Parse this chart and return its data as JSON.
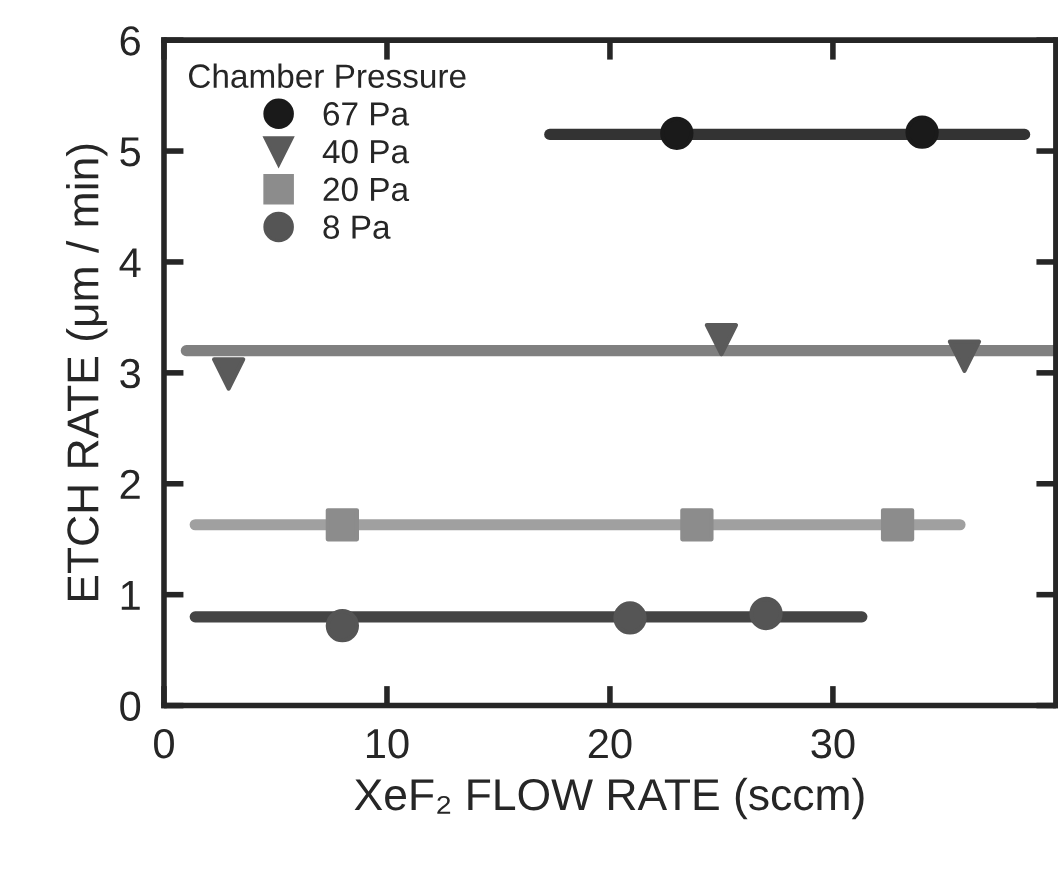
{
  "chart_data": {
    "type": "scatter",
    "xlabel": "XeF₂ FLOW RATE (sccm)",
    "ylabel": "ETCH RATE (μm / min)",
    "legend_title": "Chamber Pressure",
    "legend": "top left",
    "grid": false,
    "xlim": [
      0,
      40
    ],
    "ylim": [
      0,
      6
    ],
    "xticks": [
      0,
      10,
      20,
      30
    ],
    "yticks": [
      0,
      1,
      2,
      3,
      4,
      5,
      6
    ],
    "series": [
      {
        "type": "line",
        "color": "#333333",
        "x": [
          17.3,
          38.6
        ],
        "values": [
          5.15,
          5.15
        ],
        "marker": "none"
      },
      {
        "type": "line",
        "color": "#808080",
        "x": [
          1.0,
          40
        ],
        "values": [
          3.2,
          3.2
        ],
        "marker": "none"
      },
      {
        "type": "line",
        "color": "#a0a0a0",
        "x": [
          1.4,
          35.7
        ],
        "values": [
          1.63,
          1.63
        ],
        "marker": "none"
      },
      {
        "type": "line",
        "color": "#444444",
        "x": [
          1.4,
          31.3
        ],
        "values": [
          0.8,
          0.8
        ],
        "marker": "none"
      },
      {
        "name": "67 Pa",
        "color": "#1a1a1a",
        "marker": "circle",
        "x": [
          23.0,
          34.0
        ],
        "values": [
          5.16,
          5.17
        ]
      },
      {
        "name": "40 Pa",
        "color": "#5a5a5a",
        "marker": "triangle",
        "x": [
          2.9,
          25.0,
          35.9
        ],
        "values": [
          2.99,
          3.3,
          3.15
        ]
      },
      {
        "name": "20 Pa",
        "color": "#8c8c8c",
        "marker": "square",
        "x": [
          8.0,
          23.9,
          32.9
        ],
        "values": [
          1.63,
          1.63,
          1.63
        ]
      },
      {
        "name": "8 Pa",
        "color": "#555555",
        "marker": "circle",
        "x": [
          8.0,
          20.9,
          27.0
        ],
        "values": [
          0.72,
          0.79,
          0.83
        ]
      }
    ]
  }
}
